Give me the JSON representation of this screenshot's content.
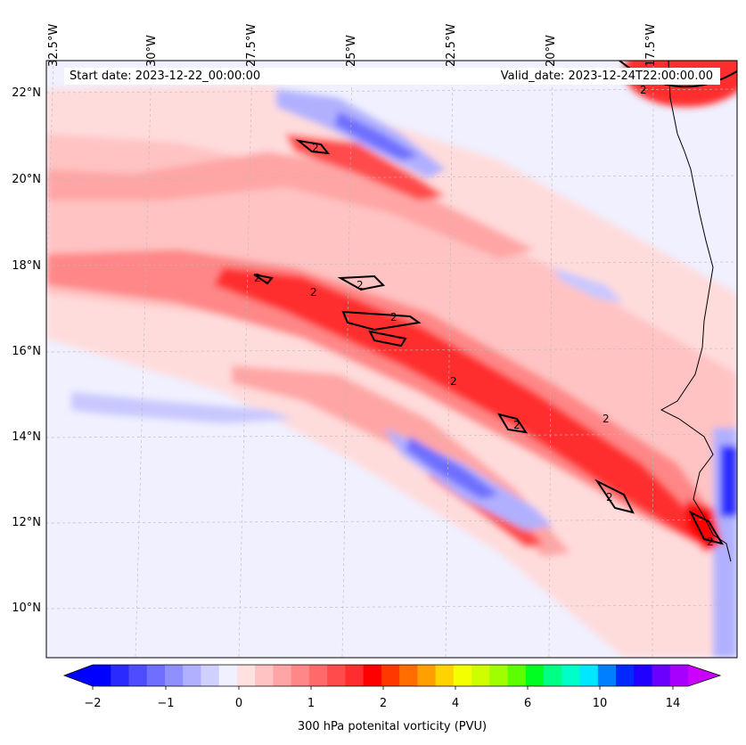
{
  "header": {
    "start_date": "Start date: 2023-12-22_00:00:00",
    "valid_date": "Valid_date: 2023-12-24T22:00:00.00"
  },
  "map": {
    "lon_labels": [
      "32.5°W",
      "30°W",
      "27.5°W",
      "25°W",
      "22.5°W",
      "20°W",
      "17.5°W"
    ],
    "lat_labels": [
      "22°N",
      "20°N",
      "18°N",
      "16°N",
      "14°N",
      "12°N",
      "10°N"
    ],
    "contour_label": "2",
    "colors": {
      "background": "#f0f0ff",
      "pale_red": "#ffdcdc",
      "light_red": "#ffb4b4",
      "mid_red": "#ff6e6e",
      "strong_red": "#ff2020",
      "light_blue": "#c8c8ff",
      "mid_blue": "#7878ff",
      "deep_blue": "#2a2aff",
      "coastline": "#000000"
    }
  },
  "colorbar": {
    "label": "300 hPa potenital vorticity (PVU)",
    "tick_labels": [
      "−2",
      "−1",
      "0",
      "1",
      "2",
      "4",
      "6",
      "10",
      "14"
    ],
    "colors": [
      "#0000ff",
      "#2a2aff",
      "#4d4dff",
      "#6e6eff",
      "#8f8fff",
      "#b0b0ff",
      "#d0d0ff",
      "#f0f0ff",
      "#ffe1e1",
      "#ffc3c3",
      "#ffa5a5",
      "#ff8787",
      "#ff6969",
      "#ff4b4b",
      "#ff2d2d",
      "#ff0000",
      "#ff3800",
      "#ff6c00",
      "#ff9f00",
      "#ffd300",
      "#f4ff00",
      "#cdff00",
      "#9fff00",
      "#5cff00",
      "#00ff20",
      "#00ff84",
      "#00ffc8",
      "#00e8ff",
      "#0080ff",
      "#0028ff",
      "#2000ff",
      "#6a00ff",
      "#a800ff"
    ],
    "extend_low_color": "#0000ff",
    "extend_high_color": "#cc00ff"
  }
}
